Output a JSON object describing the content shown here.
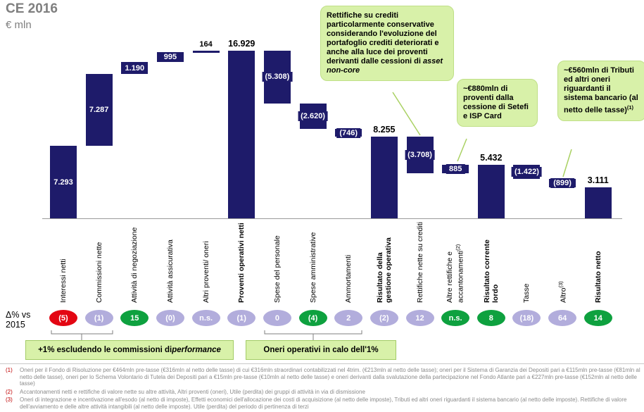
{
  "header": {
    "title": "CE 2016",
    "subtitle": "€ mln"
  },
  "delta_row": {
    "label_line1": "Δ% vs",
    "label_line2": "2015"
  },
  "colors": {
    "bar": "#1e1b6a",
    "red": "#e30613",
    "green": "#0ea13f",
    "lavender": "#b2addc",
    "callout_bg": "#d8f1a9"
  },
  "chart_data": {
    "type": "bar",
    "subtype": "waterfall",
    "title": "CE 2016",
    "unit": "€ mln",
    "ylim": [
      0,
      16929
    ],
    "grid": false,
    "items": [
      {
        "label": "Interessi netti",
        "value": 7293,
        "display": "7.293",
        "kind": "add",
        "label_pos": "inside",
        "delta": "(5)",
        "delta_color": "red"
      },
      {
        "label": "Commissioni nette",
        "value": 7287,
        "display": "7.287",
        "kind": "add",
        "label_pos": "inside",
        "delta": "(1)",
        "delta_color": "lavender"
      },
      {
        "label": "Attività di negoziazione",
        "value": 1190,
        "display": "1.190",
        "kind": "add",
        "label_pos": "inside",
        "delta": "15",
        "delta_color": "green"
      },
      {
        "label": "Attività assicurativa",
        "value": 995,
        "display": "995",
        "kind": "add",
        "label_pos": "inside",
        "delta": "(0)",
        "delta_color": "lavender"
      },
      {
        "label": "Altri proventi/ oneri",
        "value": 164,
        "display": "164",
        "kind": "add",
        "label_pos": "above",
        "delta": "n.s.",
        "delta_color": "lavender"
      },
      {
        "label": "Proventi operativi netti",
        "value": 16929,
        "display": "16.929",
        "kind": "total",
        "bold": true,
        "label_pos": "above",
        "delta": "(1)",
        "delta_color": "lavender"
      },
      {
        "label": "Spese del personale",
        "value": -5308,
        "display": "(5.308)",
        "kind": "sub",
        "label_pos": "inside",
        "delta": "0",
        "delta_color": "lavender"
      },
      {
        "label": "Spese amministrative",
        "value": -2620,
        "display": "(2.620)",
        "kind": "sub",
        "label_pos": "inside",
        "delta": "(4)",
        "delta_color": "green"
      },
      {
        "label": "Ammortamenti",
        "value": -746,
        "display": "(746)",
        "kind": "sub",
        "label_pos": "inside",
        "delta": "2",
        "delta_color": "lavender"
      },
      {
        "label": "Risultato della gestione operativa",
        "value": 8255,
        "display": "8.255",
        "kind": "total",
        "bold": true,
        "label_pos": "above",
        "delta": "(2)",
        "delta_color": "lavender"
      },
      {
        "label": "Rettifiche nette su crediti",
        "value": -3708,
        "display": "(3.708)",
        "kind": "sub",
        "label_pos": "inside",
        "delta": "12",
        "delta_color": "lavender"
      },
      {
        "label": "Altre rettifiche e accantonamenti",
        "sup": "(2)",
        "value": 885,
        "display": "885",
        "kind": "add",
        "label_pos": "inside",
        "delta": "n.s.",
        "delta_color": "green"
      },
      {
        "label": "Risultato corrente lordo",
        "value": 5432,
        "display": "5.432",
        "kind": "total",
        "bold": true,
        "label_pos": "above",
        "delta": "8",
        "delta_color": "green"
      },
      {
        "label": "Tasse",
        "value": -1422,
        "display": "(1.422)",
        "kind": "sub",
        "label_pos": "inside",
        "delta": "(18)",
        "delta_color": "lavender"
      },
      {
        "label": "Altro",
        "sup": "(3)",
        "value": -899,
        "display": "(899)",
        "kind": "sub",
        "label_pos": "inside",
        "delta": "64",
        "delta_color": "lavender"
      },
      {
        "label": "Risultato netto",
        "value": 3111,
        "display": "3.111",
        "kind": "total",
        "bold": true,
        "label_pos": "above",
        "delta": "14",
        "delta_color": "green"
      }
    ]
  },
  "callouts": [
    {
      "parts": [
        {
          "t": "Rettifiche su crediti particolarmente conservative considerando l'evoluzione del portafoglio crediti deteriorati e anche alla luce dei proventi derivanti dalle cessioni di ",
          "s": "n"
        },
        {
          "t": "asset non-core",
          "s": "i"
        }
      ]
    },
    {
      "parts": [
        {
          "t": "~€880mln di proventi dalla cessione di Setefi e ISP Card",
          "s": "n"
        }
      ]
    },
    {
      "parts": [
        {
          "t": "~€560mln di Tributi ed altri oneri riguardanti il sistema bancario (al netto delle tasse)",
          "s": "n"
        },
        {
          "t": "(1)",
          "s": "sup"
        }
      ]
    }
  ],
  "bottom_notes": [
    {
      "parts": [
        {
          "t": "+1% escludendo le commissioni di ",
          "s": "n"
        },
        {
          "t": "performance",
          "s": "i"
        }
      ]
    },
    {
      "parts": [
        {
          "t": "Oneri operativi in calo dell'1%",
          "s": "n"
        }
      ]
    }
  ],
  "footnotes": [
    {
      "marker": "(1)",
      "text": "Oneri per il Fondo di Risoluzione per €464mln pre-tasse (€316mln al netto delle tasse) di cui €316mln straordinari contabilizzati nel 4trim. (€213mln al netto delle tasse); oneri per il Sistema di Garanzia dei Depositi pari a €115mln pre-tasse (€81mln al netto delle tasse), oneri per lo Schema Volontario di Tutela dei Depositi pari a €15mln pre-tasse (€10mln al netto delle tasse) e oneri derivanti dalla svalutazione della partecipazione nel Fondo Atlante pari a €227mln pre-tasse (€152mln al netto delle tasse)"
    },
    {
      "marker": "(2)",
      "text": "Accantonamenti netti e rettifiche di valore nette su altre attività, Altri proventi (oneri), Utile (perdita) dei gruppi di attività in via di dismissione"
    },
    {
      "marker": "(3)",
      "text": "Oneri di integrazione e incentivazione all'esodo (al netto di imposte), Effetti economici dell'allocazione dei costi di acquisizione (al netto delle imposte), Tributi ed altri oneri riguardanti il sistema bancario (al netto delle imposte). Rettifiche di valore dell'avviamento e delle altre attività intangibili (al netto delle imposte). Utile (perdita) del periodo di pertinenza di terzi"
    }
  ]
}
